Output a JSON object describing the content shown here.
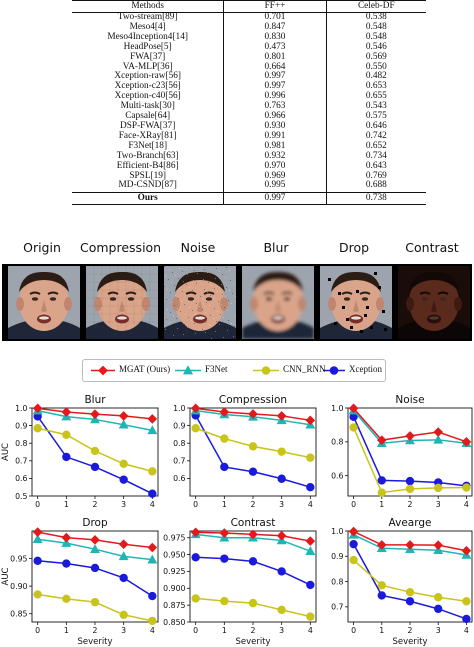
{
  "table": {
    "headers": [
      "Methods",
      "FF++",
      "Celeb-DF"
    ],
    "rows": [
      [
        "Two-stream[89]",
        "0.701",
        "0.538"
      ],
      [
        "Meso4[4]",
        "0.847",
        "0.548"
      ],
      [
        "Meso4Inception4[14]",
        "0.830",
        "0.548"
      ],
      [
        "HeadPose[5]",
        "0.473",
        "0.546"
      ],
      [
        "FWA[37]",
        "0.801",
        "0.569"
      ],
      [
        "VA-MLP[36]",
        "0.664",
        "0.550"
      ],
      [
        "Xception-raw[56]",
        "0.997",
        "0.482"
      ],
      [
        "Xception-c23[56]",
        "0.997",
        "0.653"
      ],
      [
        "Xception-c40[56]",
        "0.996",
        "0.655"
      ],
      [
        "Multi-task[30]",
        "0.763",
        "0.543"
      ],
      [
        "Capsale[64]",
        "0.966",
        "0.575"
      ],
      [
        "DSP-FWA[37]",
        "0.930",
        "0.646"
      ],
      [
        "Face-XRay[81]",
        "0.991",
        "0.742"
      ],
      [
        "F3Net[18]",
        "0.981",
        "0.652"
      ],
      [
        "Two-Branch[63]",
        "0.932",
        "0.734"
      ],
      [
        "Efficient-B4[86]",
        "0.970",
        "0.643"
      ],
      [
        "SPSL[19]",
        "0.969",
        "0.769"
      ],
      [
        "MD-CSND[87]",
        "0.995",
        "0.688"
      ]
    ],
    "ours": [
      "Ours",
      "0.997",
      "0.738"
    ]
  },
  "perturbations": [
    "Origin",
    "Compression",
    "Noise",
    "Blur",
    "Drop",
    "Contrast"
  ],
  "legend": [
    {
      "name": "MGAT (Ours)",
      "color": "#e31a1c",
      "marker": "diamond"
    },
    {
      "name": "F3Net",
      "color": "#1fb5b5",
      "marker": "triangle"
    },
    {
      "name": "CNN_RNN",
      "color": "#c8c41c",
      "marker": "circle"
    },
    {
      "name": "Xception",
      "color": "#1a1adb",
      "marker": "circle"
    }
  ],
  "chart_data": [
    {
      "type": "line",
      "title": "Blur",
      "xlabel": "",
      "ylabel": "AUC",
      "x": [
        0,
        1,
        2,
        3,
        4
      ],
      "ylim": [
        0.5,
        1.0
      ],
      "yticks": [
        0.5,
        0.6,
        0.7,
        0.8,
        0.9,
        1.0
      ],
      "ytick_labels": [
        "0.5",
        "0.6",
        "0.7",
        "0.8",
        "0.9",
        "1.0"
      ],
      "series": [
        {
          "name": "MGAT (Ours)",
          "values": [
            0.998,
            0.977,
            0.965,
            0.955,
            0.938
          ]
        },
        {
          "name": "F3Net",
          "values": [
            0.985,
            0.951,
            0.935,
            0.905,
            0.873
          ]
        },
        {
          "name": "CNN_RNN",
          "values": [
            0.885,
            0.848,
            0.756,
            0.683,
            0.64
          ]
        },
        {
          "name": "Xception",
          "values": [
            0.952,
            0.722,
            0.665,
            0.593,
            0.513
          ]
        }
      ]
    },
    {
      "type": "line",
      "title": "Compression",
      "xlabel": "",
      "ylabel": "",
      "x": [
        0,
        1,
        2,
        3,
        4
      ],
      "ylim": [
        0.5,
        1.0
      ],
      "yticks": [
        0.6,
        0.7,
        0.8,
        0.9,
        1.0
      ],
      "ytick_labels": [
        "0.6",
        "0.7",
        "0.8",
        "0.9",
        "1.0"
      ],
      "series": [
        {
          "name": "MGAT (Ours)",
          "values": [
            0.998,
            0.977,
            0.966,
            0.955,
            0.93
          ]
        },
        {
          "name": "F3Net",
          "values": [
            0.985,
            0.963,
            0.95,
            0.93,
            0.905
          ]
        },
        {
          "name": "CNN_RNN",
          "values": [
            0.885,
            0.826,
            0.782,
            0.752,
            0.718
          ]
        },
        {
          "name": "Xception",
          "values": [
            0.958,
            0.665,
            0.638,
            0.598,
            0.55
          ]
        }
      ]
    },
    {
      "type": "line",
      "title": "Noise",
      "xlabel": "",
      "ylabel": "",
      "x": [
        0,
        1,
        2,
        3,
        4
      ],
      "ylim": [
        0.48,
        1.0
      ],
      "yticks": [
        0.6,
        0.8,
        1.0
      ],
      "ytick_labels": [
        "0.6",
        "0.8",
        "1.0"
      ],
      "series": [
        {
          "name": "MGAT (Ours)",
          "values": [
            0.998,
            0.81,
            0.835,
            0.858,
            0.8
          ]
        },
        {
          "name": "F3Net",
          "values": [
            0.985,
            0.792,
            0.808,
            0.812,
            0.792
          ]
        },
        {
          "name": "CNN_RNN",
          "values": [
            0.885,
            0.5,
            0.522,
            0.528,
            0.53
          ]
        },
        {
          "name": "Xception",
          "values": [
            0.948,
            0.572,
            0.568,
            0.56,
            0.54
          ]
        }
      ]
    },
    {
      "type": "line",
      "title": "Drop",
      "xlabel": "Severity",
      "ylabel": "AUC",
      "x": [
        0,
        1,
        2,
        3,
        4
      ],
      "ylim": [
        0.835,
        1.0
      ],
      "yticks": [
        0.85,
        0.9,
        0.95
      ],
      "ytick_labels": [
        "0.85",
        "0.90",
        "0.95"
      ],
      "series": [
        {
          "name": "MGAT (Ours)",
          "values": [
            0.998,
            0.988,
            0.984,
            0.976,
            0.97
          ]
        },
        {
          "name": "F3Net",
          "values": [
            0.985,
            0.978,
            0.967,
            0.954,
            0.948
          ]
        },
        {
          "name": "CNN_RNN",
          "values": [
            0.885,
            0.877,
            0.871,
            0.848,
            0.837
          ]
        },
        {
          "name": "Xception",
          "values": [
            0.946,
            0.941,
            0.933,
            0.915,
            0.882
          ]
        }
      ]
    },
    {
      "type": "line",
      "title": "Contrast",
      "xlabel": "Severity",
      "ylabel": "",
      "x": [
        0,
        1,
        2,
        3,
        4
      ],
      "ylim": [
        0.85,
        0.985
      ],
      "yticks": [
        0.85,
        0.875,
        0.9,
        0.925,
        0.95,
        0.975
      ],
      "ytick_labels": [
        "0.850",
        "0.875",
        "0.900",
        "0.925",
        "0.950",
        "0.975"
      ],
      "series": [
        {
          "name": "MGAT (Ours)",
          "values": [
            0.983,
            0.982,
            0.98,
            0.978,
            0.97
          ]
        },
        {
          "name": "F3Net",
          "values": [
            0.98,
            0.975,
            0.975,
            0.971,
            0.955
          ]
        },
        {
          "name": "CNN_RNN",
          "values": [
            0.885,
            0.881,
            0.878,
            0.868,
            0.858
          ]
        },
        {
          "name": "Xception",
          "values": [
            0.946,
            0.944,
            0.94,
            0.925,
            0.905
          ]
        }
      ]
    },
    {
      "type": "line",
      "title": "Avearge",
      "xlabel": "Severity",
      "ylabel": "",
      "x": [
        0,
        1,
        2,
        3,
        4
      ],
      "ylim": [
        0.64,
        1.0
      ],
      "yticks": [
        0.7,
        0.8,
        0.9,
        1.0
      ],
      "ytick_labels": [
        "0.7",
        "0.8",
        "0.9",
        "1.0"
      ],
      "series": [
        {
          "name": "MGAT (Ours)",
          "values": [
            0.998,
            0.945,
            0.945,
            0.944,
            0.922
          ]
        },
        {
          "name": "F3Net",
          "values": [
            0.985,
            0.932,
            0.928,
            0.924,
            0.905
          ]
        },
        {
          "name": "CNN_RNN",
          "values": [
            0.885,
            0.785,
            0.758,
            0.738,
            0.722
          ]
        },
        {
          "name": "Xception",
          "values": [
            0.948,
            0.745,
            0.722,
            0.692,
            0.652
          ]
        }
      ]
    }
  ]
}
